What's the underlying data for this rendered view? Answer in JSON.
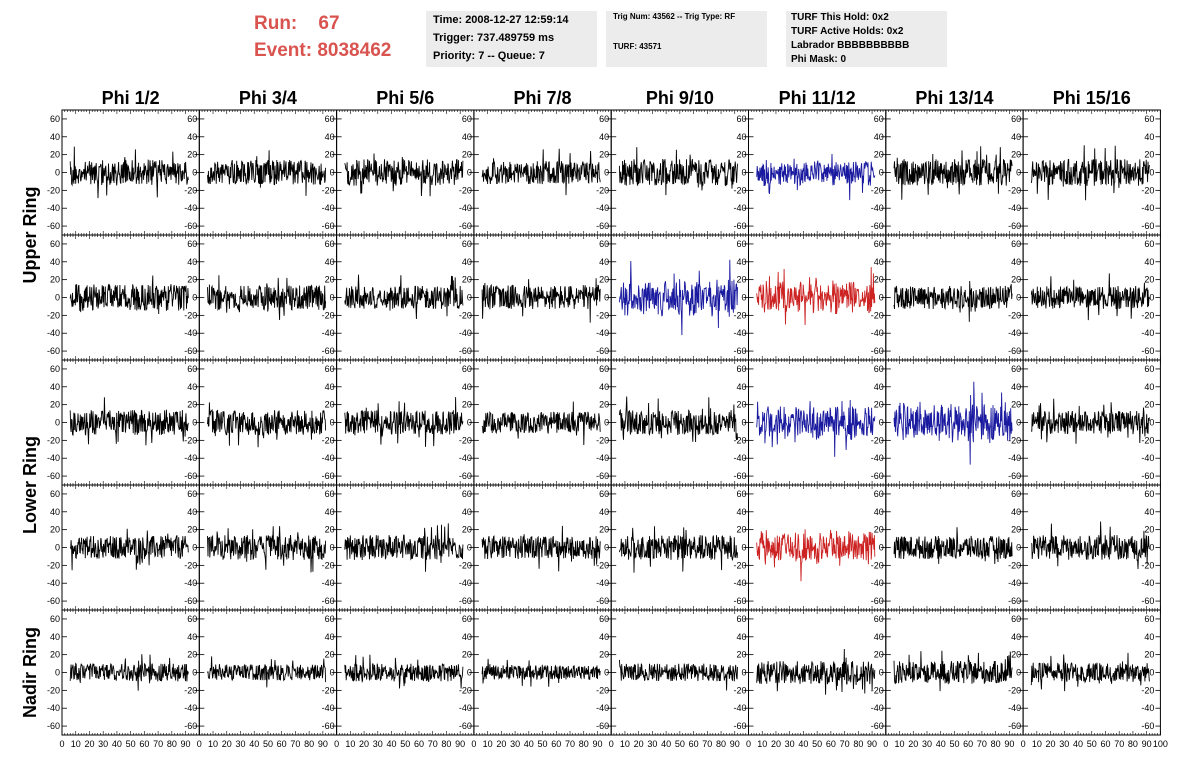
{
  "header": {
    "run_label": "Run:",
    "run_value": "67",
    "event_label": "Event:",
    "event_value": "8038462",
    "time": "Time: 2008-12-27 12:59:14",
    "trigger": "Trigger: 737.489759 ms",
    "priority": "Priority: 7 -- Queue: 7",
    "trig_num": "Trig Num: 43562 -- Trig Type: RF",
    "turf": "TURF: 43571",
    "turf_hold": "TURF This Hold: 0x2",
    "turf_active": "TURF Active Holds: 0x2",
    "labrador": "Labrador BBBBBBBBBB",
    "phi_mask": "Phi Mask: 0"
  },
  "chart_data": {
    "type": "line",
    "title": "",
    "columns": [
      "Phi 1/2",
      "Phi 3/4",
      "Phi 5/6",
      "Phi 7/8",
      "Phi 9/10",
      "Phi 11/12",
      "Phi 13/14",
      "Phi 15/16"
    ],
    "rows": [
      "Upper Ring",
      "Upper Ring",
      "Lower Ring",
      "Lower Ring",
      "Nadir Ring"
    ],
    "row_labels": [
      "Upper Ring",
      "Lower Ring",
      "Nadir Ring"
    ],
    "xlim": [
      0,
      100
    ],
    "ylim": [
      -70,
      70
    ],
    "y_ticks": [
      -60,
      -40,
      -20,
      0,
      20,
      40,
      60
    ],
    "y_tick_labels": [
      "-60",
      "-40",
      "-20",
      "0",
      "20",
      "40",
      "60"
    ],
    "x_tick_labels": [
      "0",
      "10",
      "20",
      "30",
      "40",
      "50",
      "60",
      "70",
      "80",
      "90",
      "100"
    ],
    "grid": false,
    "colors": {
      "default": "#000000",
      "blue": "#1a1aa0",
      "red": "#cc2222"
    },
    "panels": [
      {
        "row": 0,
        "col": 0,
        "color": "default",
        "amp": 14,
        "seed": 11
      },
      {
        "row": 0,
        "col": 1,
        "color": "default",
        "amp": 14,
        "seed": 12
      },
      {
        "row": 0,
        "col": 2,
        "color": "default",
        "amp": 15,
        "seed": 13
      },
      {
        "row": 0,
        "col": 3,
        "color": "default",
        "amp": 13,
        "seed": 14
      },
      {
        "row": 0,
        "col": 4,
        "color": "default",
        "amp": 15,
        "seed": 15
      },
      {
        "row": 0,
        "col": 5,
        "color": "blue",
        "amp": 12,
        "seed": 16
      },
      {
        "row": 0,
        "col": 6,
        "color": "default",
        "amp": 15,
        "seed": 17
      },
      {
        "row": 0,
        "col": 7,
        "color": "default",
        "amp": 15,
        "seed": 18
      },
      {
        "row": 1,
        "col": 0,
        "color": "default",
        "amp": 15,
        "seed": 21
      },
      {
        "row": 1,
        "col": 1,
        "color": "default",
        "amp": 14,
        "seed": 22
      },
      {
        "row": 1,
        "col": 2,
        "color": "default",
        "amp": 13,
        "seed": 23
      },
      {
        "row": 1,
        "col": 3,
        "color": "default",
        "amp": 14,
        "seed": 24
      },
      {
        "row": 1,
        "col": 4,
        "color": "blue",
        "amp": 17,
        "seed": 25
      },
      {
        "row": 1,
        "col": 5,
        "color": "red",
        "amp": 15,
        "seed": 26
      },
      {
        "row": 1,
        "col": 6,
        "color": "default",
        "amp": 13,
        "seed": 27
      },
      {
        "row": 1,
        "col": 7,
        "color": "default",
        "amp": 13,
        "seed": 28
      },
      {
        "row": 2,
        "col": 0,
        "color": "default",
        "amp": 14,
        "seed": 31
      },
      {
        "row": 2,
        "col": 1,
        "color": "default",
        "amp": 14,
        "seed": 32
      },
      {
        "row": 2,
        "col": 2,
        "color": "default",
        "amp": 14,
        "seed": 33
      },
      {
        "row": 2,
        "col": 3,
        "color": "default",
        "amp": 12,
        "seed": 34
      },
      {
        "row": 2,
        "col": 4,
        "color": "default",
        "amp": 14,
        "seed": 35
      },
      {
        "row": 2,
        "col": 5,
        "color": "blue",
        "amp": 15,
        "seed": 36
      },
      {
        "row": 2,
        "col": 6,
        "color": "blue",
        "amp": 18,
        "seed": 37
      },
      {
        "row": 2,
        "col": 7,
        "color": "default",
        "amp": 13,
        "seed": 38
      },
      {
        "row": 3,
        "col": 0,
        "color": "default",
        "amp": 13,
        "seed": 41
      },
      {
        "row": 3,
        "col": 1,
        "color": "default",
        "amp": 14,
        "seed": 42
      },
      {
        "row": 3,
        "col": 2,
        "color": "default",
        "amp": 14,
        "seed": 43
      },
      {
        "row": 3,
        "col": 3,
        "color": "default",
        "amp": 13,
        "seed": 44
      },
      {
        "row": 3,
        "col": 4,
        "color": "default",
        "amp": 14,
        "seed": 45
      },
      {
        "row": 3,
        "col": 5,
        "color": "red",
        "amp": 15,
        "seed": 46
      },
      {
        "row": 3,
        "col": 6,
        "color": "default",
        "amp": 13,
        "seed": 47
      },
      {
        "row": 3,
        "col": 7,
        "color": "default",
        "amp": 14,
        "seed": 48
      },
      {
        "row": 4,
        "col": 0,
        "color": "default",
        "amp": 10,
        "seed": 51
      },
      {
        "row": 4,
        "col": 1,
        "color": "default",
        "amp": 9,
        "seed": 52
      },
      {
        "row": 4,
        "col": 2,
        "color": "default",
        "amp": 10,
        "seed": 53
      },
      {
        "row": 4,
        "col": 3,
        "color": "default",
        "amp": 8,
        "seed": 54
      },
      {
        "row": 4,
        "col": 4,
        "color": "default",
        "amp": 10,
        "seed": 55
      },
      {
        "row": 4,
        "col": 5,
        "color": "default",
        "amp": 13,
        "seed": 56
      },
      {
        "row": 4,
        "col": 6,
        "color": "default",
        "amp": 13,
        "seed": 57
      },
      {
        "row": 4,
        "col": 7,
        "color": "default",
        "amp": 11,
        "seed": 58
      }
    ]
  }
}
